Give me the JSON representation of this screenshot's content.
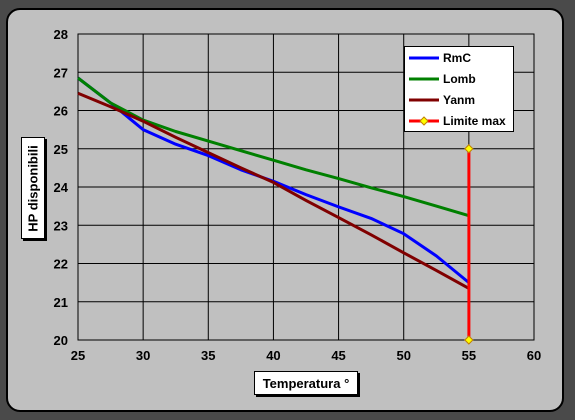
{
  "chart_data": {
    "type": "line",
    "title": "",
    "xlabel": "Temperatura °",
    "ylabel": "HP disponibili",
    "xlim": [
      25,
      60
    ],
    "ylim": [
      20,
      28
    ],
    "x_ticks": [
      "25",
      "30",
      "35",
      "40",
      "45",
      "50",
      "55",
      "60"
    ],
    "y_ticks": [
      "20",
      "21",
      "22",
      "23",
      "24",
      "25",
      "26",
      "27",
      "28"
    ],
    "grid": true,
    "legend_position": "top-right",
    "series": [
      {
        "name": "RmC",
        "color": "#0000ff",
        "points": [
          [
            25,
            26.85
          ],
          [
            27.5,
            26.2
          ],
          [
            30,
            25.5
          ],
          [
            32.5,
            25.12
          ],
          [
            35,
            24.82
          ],
          [
            37.5,
            24.45
          ],
          [
            40,
            24.15
          ],
          [
            42.5,
            23.8
          ],
          [
            45,
            23.48
          ],
          [
            47.5,
            23.18
          ],
          [
            50,
            22.78
          ],
          [
            52.5,
            22.2
          ],
          [
            55,
            21.5
          ]
        ]
      },
      {
        "name": "Lomb",
        "color": "#008000",
        "points": [
          [
            25,
            26.85
          ],
          [
            27.5,
            26.2
          ],
          [
            30,
            25.75
          ],
          [
            32.5,
            25.45
          ],
          [
            35,
            25.2
          ],
          [
            37.5,
            24.95
          ],
          [
            40,
            24.7
          ],
          [
            42.5,
            24.45
          ],
          [
            45,
            24.22
          ],
          [
            47.5,
            23.98
          ],
          [
            50,
            23.75
          ],
          [
            52.5,
            23.5
          ],
          [
            55,
            23.25
          ]
        ]
      },
      {
        "name": "Yanm",
        "color": "#800000",
        "points": [
          [
            25,
            26.45
          ],
          [
            27.5,
            26.1
          ],
          [
            30,
            25.72
          ],
          [
            32.5,
            25.3
          ],
          [
            35,
            24.9
          ],
          [
            37.5,
            24.5
          ],
          [
            40,
            24.12
          ],
          [
            42.5,
            23.65
          ],
          [
            45,
            23.2
          ],
          [
            47.5,
            22.75
          ],
          [
            50,
            22.28
          ],
          [
            52.5,
            21.82
          ],
          [
            55,
            21.35
          ]
        ]
      },
      {
        "name": "Limite max",
        "color": "#ff0000",
        "marker_color": "#ffff00",
        "points": [
          [
            55,
            20
          ],
          [
            55,
            25
          ]
        ]
      }
    ]
  }
}
